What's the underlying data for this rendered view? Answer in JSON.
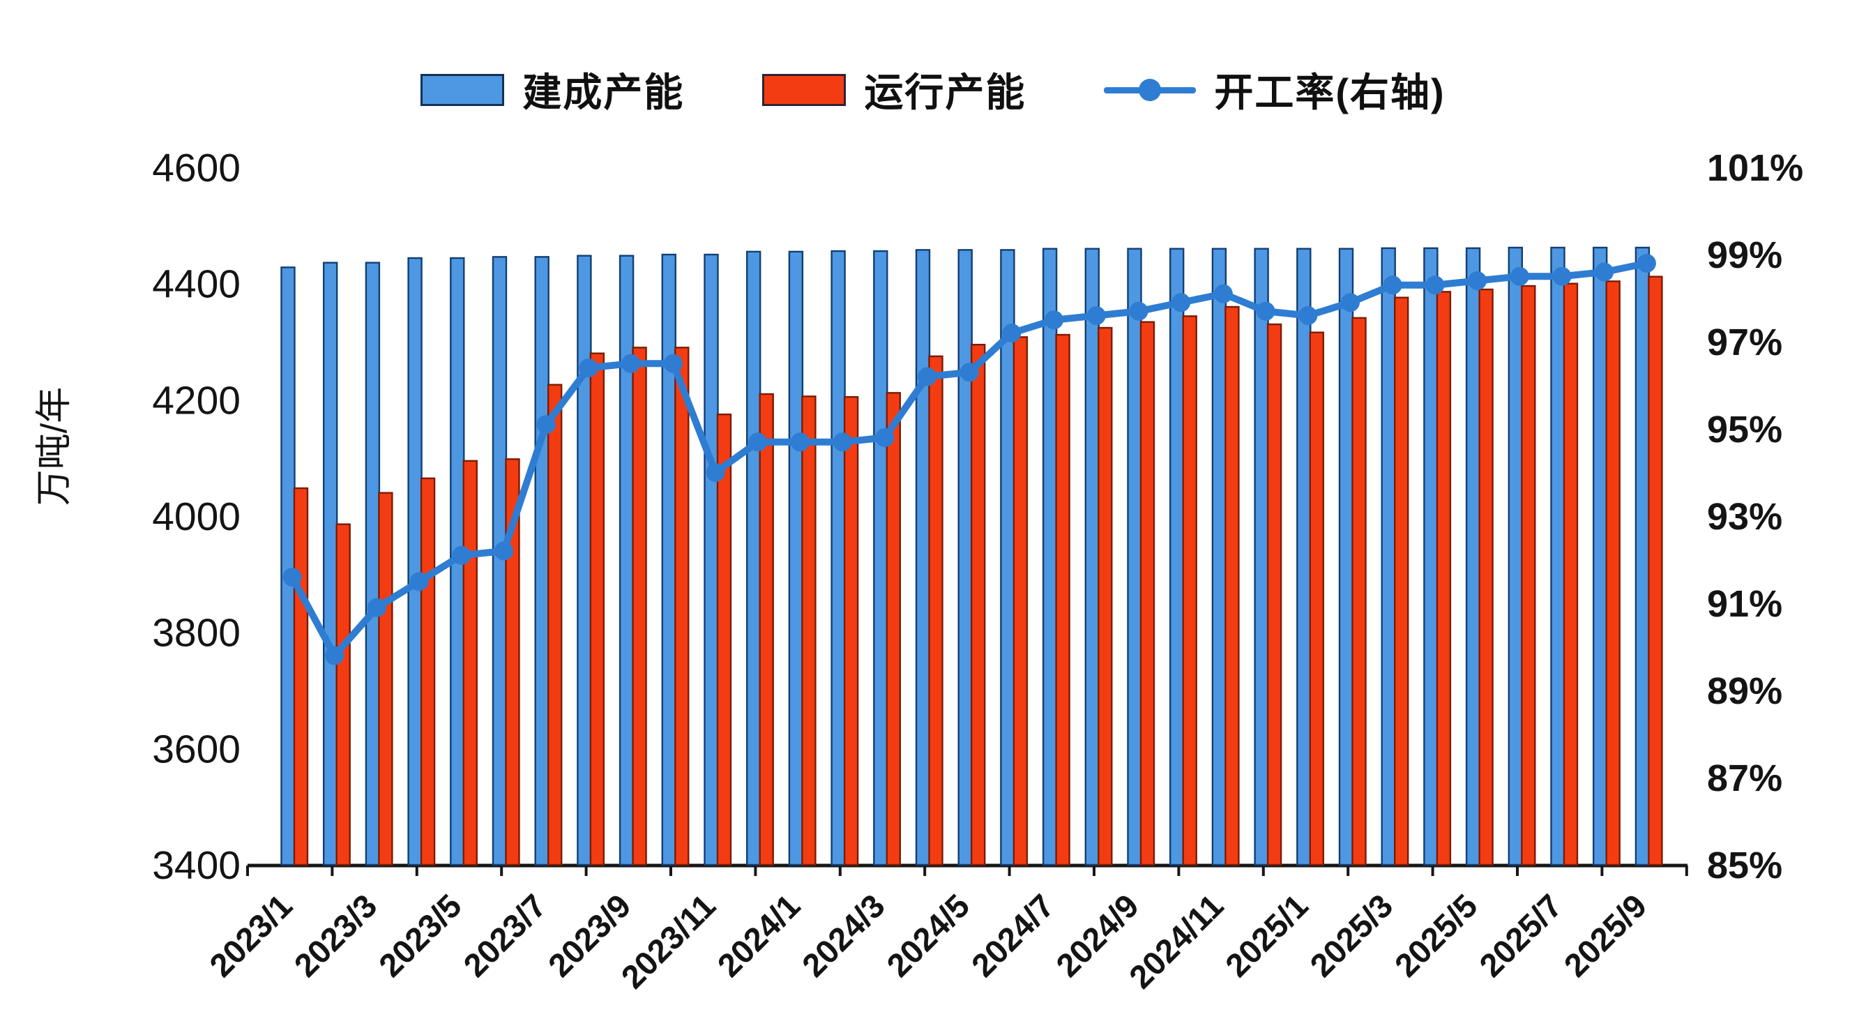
{
  "page": {
    "background": "#ffffff"
  },
  "colors": {
    "built_bar": "#4E97E2",
    "built_bar_edge": "#123f73",
    "operating_bar": "#F43C12",
    "operating_bar_edge": "#7a1c04",
    "rate_line": "#2E7DD2",
    "axis": "#161616",
    "text": "#141414"
  },
  "legend": {
    "items": [
      {
        "label": "建成产能",
        "type": "bar",
        "color": "#4E97E2"
      },
      {
        "label": "运行产能",
        "type": "bar",
        "color": "#F43C12"
      },
      {
        "label": "开工率(右轴)",
        "type": "line",
        "color": "#2E7DD2"
      }
    ]
  },
  "chart_data": {
    "type": "bar",
    "subtype": "dual-axis bar+line combo",
    "title": "",
    "xlabel": "",
    "left_axis": {
      "title": "万吨/年",
      "ylim": [
        3400,
        4600
      ],
      "step": 200,
      "ticks": [
        "3400",
        "3600",
        "3800",
        "4000",
        "4200",
        "4400",
        "4600"
      ]
    },
    "right_axis": {
      "title": "",
      "ylim": [
        85,
        101
      ],
      "step": 2,
      "ticks": [
        "85%",
        "87%",
        "89%",
        "91%",
        "93%",
        "95%",
        "97%",
        "99%",
        "101%"
      ]
    },
    "grid": false,
    "legend_position": "top",
    "categories": [
      "2023/1",
      "2023/2",
      "2023/3",
      "2023/4",
      "2023/5",
      "2023/6",
      "2023/7",
      "2023/8",
      "2023/9",
      "2023/10",
      "2023/11",
      "2023/12",
      "2024/1",
      "2024/2",
      "2024/3",
      "2024/4",
      "2024/5",
      "2024/6",
      "2024/7",
      "2024/8",
      "2024/9",
      "2024/10",
      "2024/11",
      "2024/12",
      "2025/1",
      "2025/2",
      "2025/3",
      "2025/4",
      "2025/5",
      "2025/6",
      "2025/7",
      "2025/8",
      "2025/9"
    ],
    "x_tick_labels": [
      "2023/1",
      "2023/3",
      "2023/5",
      "2023/7",
      "2023/9",
      "2023/11",
      "2024/1",
      "2024/3",
      "2024/5",
      "2024/7",
      "2024/9",
      "2024/11",
      "2025/1",
      "2025/3",
      "2025/5",
      "2025/7",
      "2025/9"
    ],
    "series": [
      {
        "name": "建成产能",
        "type": "bar",
        "axis": "left",
        "unit": "万吨/年",
        "color": "#4E97E2",
        "values": [
          4428,
          4436,
          4436,
          4444,
          4444,
          4446,
          4446,
          4448,
          4448,
          4450,
          4450,
          4455,
          4455,
          4456,
          4456,
          4458,
          4458,
          4458,
          4460,
          4460,
          4460,
          4460,
          4460,
          4460,
          4460,
          4460,
          4461,
          4461,
          4461,
          4462,
          4462,
          4462,
          4462
        ]
      },
      {
        "name": "运行产能",
        "type": "bar",
        "axis": "left",
        "unit": "万吨/年",
        "color": "#F43C12",
        "values": [
          4048,
          3986,
          4040,
          4065,
          4095,
          4098,
          4226,
          4280,
          4290,
          4290,
          4175,
          4210,
          4206,
          4205,
          4212,
          4275,
          4295,
          4308,
          4312,
          4324,
          4334,
          4344,
          4360,
          4330,
          4316,
          4341,
          4376,
          4386,
          4390,
          4396,
          4400,
          4404,
          4412
        ]
      },
      {
        "name": "开工率(右轴)",
        "type": "line",
        "axis": "right",
        "unit": "%",
        "color": "#2E7DD2",
        "values": [
          91.6,
          89.8,
          90.9,
          91.5,
          92.1,
          92.2,
          95.1,
          96.4,
          96.5,
          96.5,
          94.0,
          94.7,
          94.7,
          94.7,
          94.8,
          96.2,
          96.3,
          97.2,
          97.5,
          97.6,
          97.7,
          97.9,
          98.1,
          97.7,
          97.6,
          97.9,
          98.3,
          98.3,
          98.4,
          98.5,
          98.5,
          98.6,
          98.8
        ]
      }
    ]
  }
}
